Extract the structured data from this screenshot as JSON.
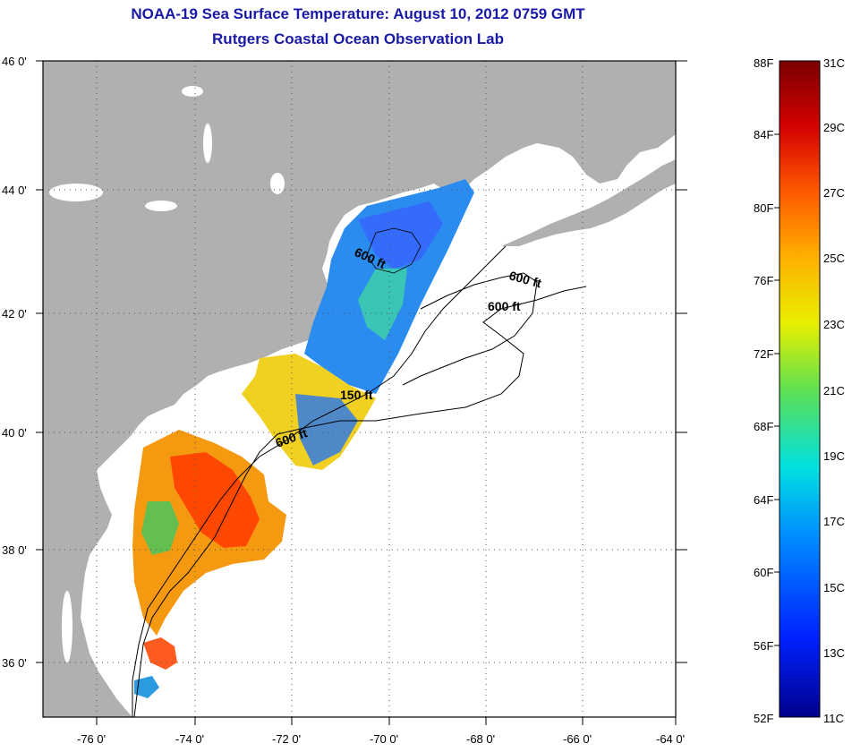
{
  "title": {
    "line1": "NOAA-19 Sea Surface Temperature:  August 10, 2012 0759 GMT",
    "line2": "Rutgers Coastal Ocean Observation Lab"
  },
  "map": {
    "lat_labels": [
      "46 0'",
      "44 0'",
      "42 0'",
      "40 0'",
      "38 0'",
      "36 0'"
    ],
    "lon_labels": [
      "-76 0'",
      "-74 0'",
      "-72 0'",
      "-70 0'",
      "-68 0'",
      "-66 0'",
      "-64 0'"
    ],
    "contour_labels": [
      "600 ft",
      "600 ft",
      "600 ft",
      "150 ft",
      "600 ft"
    ],
    "land_color": "#b0b0b0",
    "water_color": "#ffffff"
  },
  "colorbar": {
    "f_labels": [
      "88F",
      "84F",
      "80F",
      "76F",
      "72F",
      "68F",
      "64F",
      "60F",
      "56F",
      "52F"
    ],
    "c_labels": [
      "31C",
      "29C",
      "27C",
      "25C",
      "23C",
      "21C",
      "19C",
      "17C",
      "15C",
      "13C",
      "11C"
    ],
    "colors": [
      "#7a0000",
      "#d40000",
      "#ff5a00",
      "#ffb000",
      "#e8f000",
      "#60e050",
      "#00e0e0",
      "#0090ff",
      "#0030ff",
      "#00008c"
    ]
  }
}
